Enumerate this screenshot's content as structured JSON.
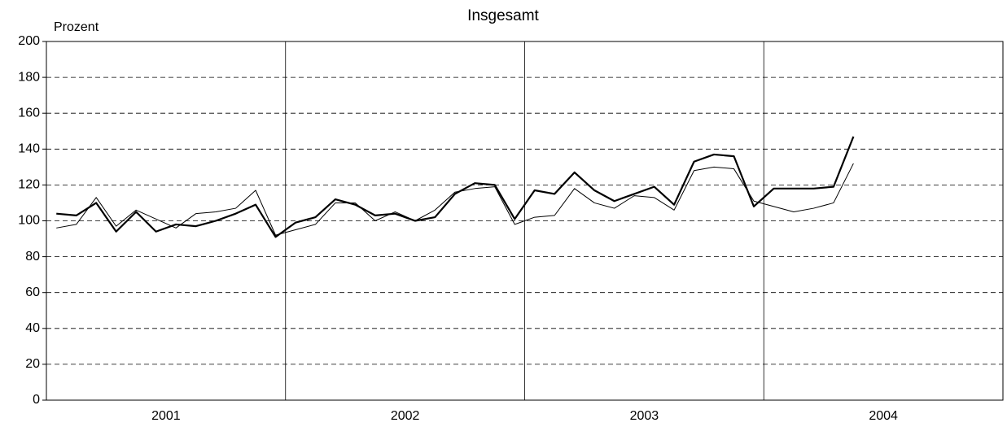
{
  "chart_data": {
    "type": "line",
    "title": "Insgesamt",
    "y_label": "Prozent",
    "categories": [
      null,
      null,
      null,
      null,
      null,
      null,
      null,
      null,
      null,
      null,
      null,
      null,
      null,
      null,
      null,
      null,
      null,
      null,
      null,
      null,
      null,
      null,
      null,
      null,
      null,
      null,
      null,
      null,
      null,
      null,
      null,
      null,
      null,
      null,
      null,
      null,
      null,
      null,
      null,
      null,
      null
    ],
    "year_labels": [
      "2001",
      "2002",
      "2003",
      "2004"
    ],
    "series": [
      {
        "color": "#000000",
        "values": [
          104,
          103,
          110,
          94,
          105,
          94,
          98,
          97,
          100,
          104,
          109,
          91,
          99,
          102,
          112,
          109,
          103,
          104,
          100,
          102,
          115,
          121,
          120,
          101,
          117,
          115,
          127,
          117,
          111,
          115,
          119,
          109,
          133,
          137,
          136,
          108,
          118,
          118,
          118,
          119,
          147
        ]
      },
      {
        "color": "#000000",
        "values": [
          96,
          98,
          113,
          97,
          106,
          101,
          96,
          104,
          105,
          107,
          117,
          92,
          95,
          98,
          110,
          110,
          100,
          105,
          100,
          106,
          116,
          118,
          119,
          98,
          102,
          103,
          118,
          110,
          107,
          114,
          113,
          106,
          128,
          130,
          129,
          111,
          108,
          105,
          107,
          110,
          132
        ]
      }
    ],
    "ylim": [
      0,
      200
    ],
    "yticks": [
      0,
      20,
      40,
      60,
      80,
      100,
      120,
      140,
      160,
      180,
      200
    ],
    "grid": true
  }
}
